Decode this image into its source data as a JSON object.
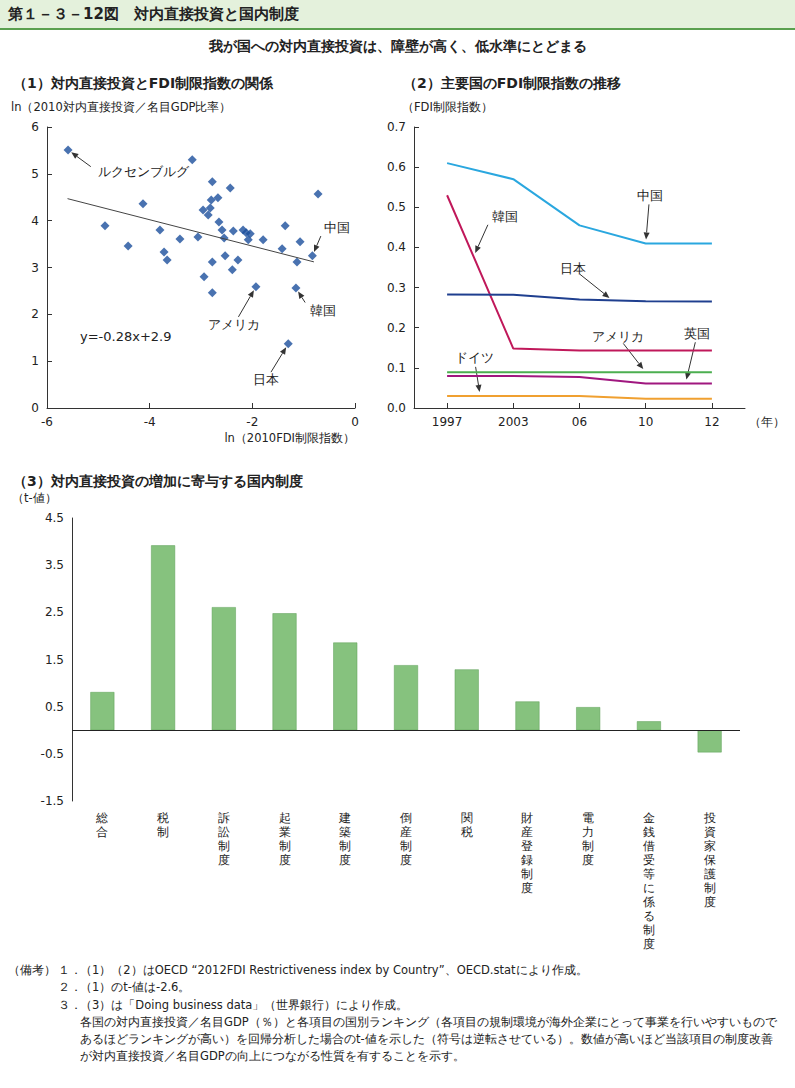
{
  "title": "第１－３－12図　対内直接投資と国内制度",
  "subtitle": "我が国への対内直接投資は、障壁が高く、低水準にとどまる",
  "chart_data": [
    {
      "type": "scatter",
      "title": "（1）対内直接投資とFDI制限指数の関係",
      "x_label": "ln（2010FDI制限指数）",
      "y_label": "ln（2010対内直接投資／名目GDP比率）",
      "x": [
        -5.59,
        -4.87,
        -4.42,
        -4.13,
        -3.8,
        -3.72,
        -3.66,
        -3.41,
        -3.17,
        -3.06,
        -2.96,
        -2.94,
        -2.86,
        -2.82,
        -2.8,
        -2.78,
        -2.78,
        -2.78,
        -2.67,
        -2.65,
        -2.59,
        -2.55,
        -2.53,
        -2.43,
        -2.39,
        -2.37,
        -2.28,
        -2.18,
        -2.12,
        -2.08,
        -2.04,
        -1.93,
        -1.79,
        -1.42,
        -1.36,
        -1.3,
        -1.15,
        -1.13,
        -1.07,
        -0.83,
        -0.72
      ],
      "y": [
        5.51,
        3.89,
        3.46,
        4.36,
        3.8,
        3.33,
        3.16,
        3.61,
        5.3,
        3.65,
        4.23,
        2.8,
        4.12,
        4.27,
        4.44,
        4.83,
        3.12,
        2.46,
        4.49,
        3.97,
        3.8,
        3.63,
        3.25,
        4.7,
        2.95,
        3.78,
        3.16,
        3.8,
        3.74,
        3.59,
        3.72,
        2.59,
        3.59,
        3.4,
        3.89,
        1.37,
        2.56,
        3.12,
        3.55,
        3.25,
        4.57
      ],
      "color": "#1b4f9c",
      "marker": "diamond",
      "trend_line": {
        "x": [
          -5.6,
          -0.8
        ],
        "y": [
          4.47,
          3.12
        ],
        "color": "#444444"
      },
      "equation": "y=-0.28x+2.9",
      "annotations": [
        {
          "text": "ルクセンブルグ",
          "x": -5.59,
          "y": 5.51
        },
        {
          "text": "中国",
          "x": -0.83,
          "y": 3.25
        },
        {
          "text": "韓国",
          "x": -1.15,
          "y": 2.56
        },
        {
          "text": "アメリカ",
          "x": -1.93,
          "y": 2.59
        },
        {
          "text": "日本",
          "x": -1.3,
          "y": 1.37
        }
      ],
      "xlim": [
        -6,
        0
      ],
      "xticks": [
        -6,
        -4,
        -2,
        0
      ],
      "ylim": [
        0,
        6
      ],
      "yticks": [
        0,
        1,
        2,
        3,
        4,
        5,
        6
      ],
      "grid": false
    },
    {
      "type": "line",
      "title": "（2）主要国のFDI制限指数の推移",
      "x_label": "（年）",
      "y_label": "（FDI制限指数）",
      "categories": [
        "1997",
        "2003",
        "06",
        "10",
        "12"
      ],
      "series": [
        {
          "name": "中国",
          "color": "#2aa7df",
          "values": [
            0.61,
            0.57,
            0.455,
            0.41,
            0.41
          ]
        },
        {
          "name": "韓国",
          "color": "#c0185a",
          "values": [
            0.53,
            0.148,
            0.143,
            0.143,
            0.143
          ]
        },
        {
          "name": "日本",
          "color": "#1f3f8f",
          "values": [
            0.283,
            0.282,
            0.27,
            0.266,
            0.265
          ]
        },
        {
          "name": "アメリカ",
          "color": "#4caf50",
          "values": [
            0.089,
            0.089,
            0.089,
            0.089,
            0.089
          ]
        },
        {
          "name": "英国",
          "color": "#a0177f",
          "values": [
            0.08,
            0.08,
            0.077,
            0.061,
            0.061
          ]
        },
        {
          "name": "ドイツ",
          "color": "#f0a030",
          "values": [
            0.03,
            0.03,
            0.03,
            0.023,
            0.023
          ]
        }
      ],
      "ylim": [
        0,
        0.7
      ],
      "yticks": [
        {
          "value": 0,
          "label": "0.0"
        },
        0.1,
        0.2,
        0.3,
        0.4,
        0.5,
        0.6,
        0.7
      ],
      "grid": false
    },
    {
      "type": "bar",
      "title": "（3）対内直接投資の増加に寄与する国内制度",
      "y_label": "（t-値）",
      "categories": [
        "総合",
        "税制",
        "訴訟制度",
        "起業制度",
        "建築制度",
        "倒産制度",
        "関税",
        "財産登録制度",
        "電力制度",
        "金銭借受等に係る制度",
        "投資家保護制度"
      ],
      "values": [
        0.81,
        3.92,
        2.61,
        2.48,
        1.86,
        1.38,
        1.29,
        0.61,
        0.49,
        0.19,
        -0.47
      ],
      "color": "#86c27e",
      "ylim": [
        -1.5,
        4.5
      ],
      "yticks": [
        -1.5,
        -0.5,
        0.5,
        1.5,
        2.5,
        3.5,
        4.5
      ],
      "grid": false
    }
  ],
  "notes": {
    "label": "（備考）",
    "items": [
      {
        "num": "１．",
        "lines": [
          "（1）（2）はOECD “2012FDI Restrictiveness index by Country”、OECD.statにより作成。"
        ]
      },
      {
        "num": "２．",
        "lines": [
          "（1）のt-値は-2.6。"
        ]
      },
      {
        "num": "３．",
        "lines": [
          "（3）は「Doing business data」（世界銀行）により作成。",
          "各国の対内直接投資／名目GDP（％）と各項目の国別ランキング（各項目の規制環境が海外企業にとって事業を行いやすいものであるほどランキングが高い）を回帰分析した場合のt-値を示した（符号は逆転させている）。数値が高いほど当該項目の制度改善が対内直接投資／名目GDPの向上につながる性質を有することを示す。"
        ]
      }
    ]
  }
}
